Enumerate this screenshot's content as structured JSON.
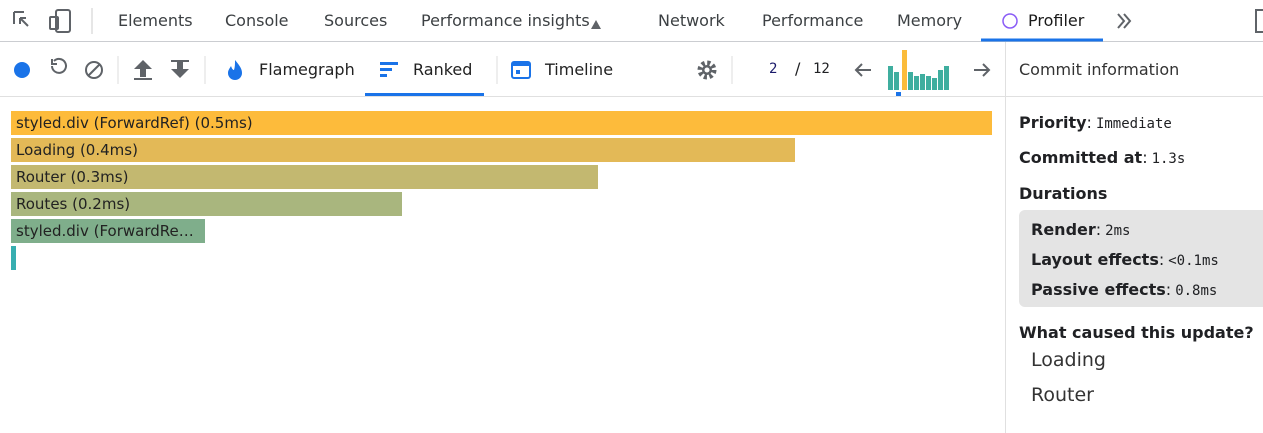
{
  "devtools_tabs": [
    "Elements",
    "Console",
    "Sources",
    "Performance insights",
    "Network",
    "Performance",
    "Memory",
    "Profiler"
  ],
  "toolbar": {
    "views": [
      "Flamegraph",
      "Ranked",
      "Timeline"
    ],
    "commit_current": 2,
    "commit_separator": "/",
    "commit_total": 12
  },
  "ranked": [
    "styled.div (ForwardRef) (0.5ms)",
    "Loading (0.4ms)",
    "Router (0.3ms)",
    "Routes (0.2ms)",
    "styled.div (ForwardRe…"
  ],
  "commit_info": {
    "title": "Commit information",
    "separator": ":",
    "fields": [
      {
        "label": "Priority",
        "value": "Immediate"
      },
      {
        "label": "Committed at",
        "value": "1.3s"
      }
    ],
    "durations": {
      "title": "Durations",
      "fields": [
        {
          "label": "Render",
          "value": "2ms"
        },
        {
          "label": "Layout effects",
          "value": "<0.1ms"
        },
        {
          "label": "Passive effects",
          "value": "0.8ms"
        }
      ]
    },
    "update_cause": {
      "title": "What caused this update?",
      "components": [
        "Loading",
        "Router"
      ]
    }
  }
}
